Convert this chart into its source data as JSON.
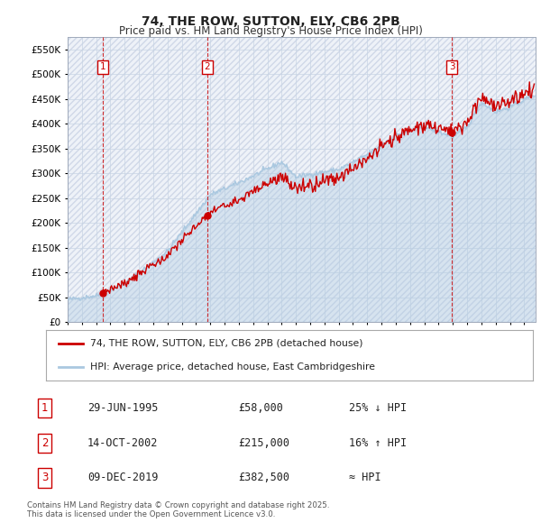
{
  "title": "74, THE ROW, SUTTON, ELY, CB6 2PB",
  "subtitle": "Price paid vs. HM Land Registry's House Price Index (HPI)",
  "ylim": [
    0,
    575000
  ],
  "yticks": [
    0,
    50000,
    100000,
    150000,
    200000,
    250000,
    300000,
    350000,
    400000,
    450000,
    500000,
    550000
  ],
  "ytick_labels": [
    "£0",
    "£50K",
    "£100K",
    "£150K",
    "£200K",
    "£250K",
    "£300K",
    "£350K",
    "£400K",
    "£450K",
    "£500K",
    "£550K"
  ],
  "xlim_start": 1993.0,
  "xlim_end": 2025.8,
  "transaction_dates": [
    1995.49,
    2002.79,
    2019.94
  ],
  "transaction_prices": [
    58000,
    215000,
    382500
  ],
  "transaction_labels": [
    "1",
    "2",
    "3"
  ],
  "vline_color": "#cc0000",
  "hpi_line_color": "#aac8e0",
  "price_line_color": "#cc0000",
  "legend_entries": [
    "74, THE ROW, SUTTON, ELY, CB6 2PB (detached house)",
    "HPI: Average price, detached house, East Cambridgeshire"
  ],
  "table_data": [
    [
      "1",
      "29-JUN-1995",
      "£58,000",
      "25% ↓ HPI"
    ],
    [
      "2",
      "14-OCT-2002",
      "£215,000",
      "16% ↑ HPI"
    ],
    [
      "3",
      "09-DEC-2019",
      "£382,500",
      "≈ HPI"
    ]
  ],
  "footnote": "Contains HM Land Registry data © Crown copyright and database right 2025.\nThis data is licensed under the Open Government Licence v3.0.",
  "background_color": "#ffffff"
}
